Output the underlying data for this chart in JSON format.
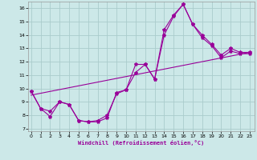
{
  "xlabel": "Windchill (Refroidissement éolien,°C)",
  "background_color": "#cce8e8",
  "line_color": "#990099",
  "grid_color": "#aacccc",
  "x_ticks": [
    0,
    1,
    2,
    3,
    4,
    5,
    6,
    7,
    8,
    9,
    10,
    11,
    12,
    13,
    14,
    15,
    16,
    17,
    18,
    19,
    20,
    21,
    22,
    23
  ],
  "y_ticks": [
    7,
    8,
    9,
    10,
    11,
    12,
    13,
    14,
    15,
    16
  ],
  "ylim": [
    6.8,
    16.5
  ],
  "xlim": [
    -0.3,
    23.5
  ],
  "series1": {
    "x": [
      0,
      1,
      2,
      3,
      4,
      5,
      6,
      7,
      8,
      9,
      10,
      11,
      12,
      13,
      14,
      15,
      16,
      17,
      18,
      19,
      20,
      21,
      22,
      23
    ],
    "y": [
      9.8,
      8.5,
      7.9,
      9.0,
      8.8,
      7.6,
      7.5,
      7.5,
      7.8,
      9.7,
      9.9,
      11.8,
      11.8,
      10.7,
      14.4,
      15.5,
      16.3,
      14.8,
      14.0,
      13.3,
      12.5,
      13.0,
      12.7,
      12.7
    ]
  },
  "series2": {
    "x": [
      0,
      1,
      2,
      3,
      4,
      5,
      6,
      7,
      8,
      9,
      10,
      11,
      12,
      13,
      14,
      15,
      16,
      17,
      18,
      19,
      20,
      21,
      22,
      23
    ],
    "y": [
      9.8,
      8.5,
      8.3,
      9.0,
      8.8,
      7.6,
      7.5,
      7.6,
      8.0,
      9.6,
      9.9,
      11.2,
      11.8,
      10.7,
      14.0,
      15.4,
      16.3,
      14.8,
      13.8,
      13.2,
      12.3,
      12.8,
      12.6,
      12.6
    ]
  },
  "series3_x": [
    0,
    23
  ],
  "series3_y": [
    9.5,
    12.7
  ]
}
